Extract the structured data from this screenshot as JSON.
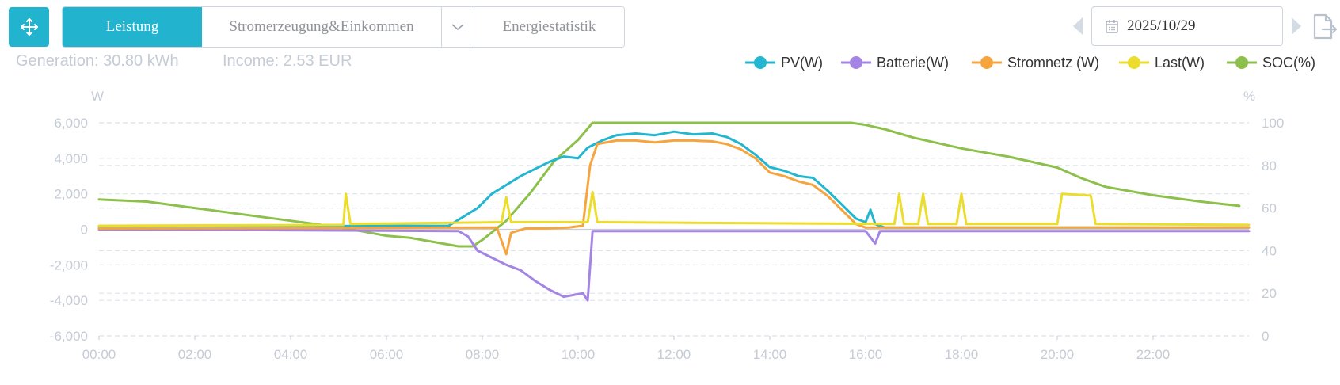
{
  "toolbar": {
    "tabs": [
      {
        "label": "Leistung",
        "active": true
      },
      {
        "label": "Stromerzeugung&Einkommen",
        "active": false
      },
      {
        "label": "Energiestatistik",
        "active": false
      }
    ],
    "date": "2025/10/29"
  },
  "summary": {
    "generation": "Generation: 30.80 kWh",
    "income": "Income: 2.53 EUR"
  },
  "colors": {
    "accent": "#22b3cf",
    "pv": "#22b6d0",
    "batterie": "#a585e3",
    "stromnetz": "#f6a53e",
    "last": "#ecdd2c",
    "soc": "#8cc04a"
  },
  "chart_data": {
    "type": "line",
    "legend_position": "top-right",
    "grid": true,
    "ylabel_left": "W",
    "ylabel_right": "%",
    "ylim_left": [
      -6000,
      6000
    ],
    "ylim_right": [
      0,
      100
    ],
    "yticks_left": [
      "6,000",
      "4,000",
      "2,000",
      "0",
      "-2,000",
      "-4,000",
      "-6,000"
    ],
    "yticks_right": [
      "100",
      "80",
      "60",
      "40",
      "20",
      "0"
    ],
    "xlim": [
      0,
      24
    ],
    "xticks": [
      "00:00",
      "02:00",
      "04:00",
      "06:00",
      "08:00",
      "10:00",
      "12:00",
      "14:00",
      "16:00",
      "18:00",
      "20:00",
      "22:00"
    ],
    "series": [
      {
        "name": "PV(W)",
        "axis": "left",
        "color": "#22b6d0",
        "x": [
          0,
          7.3,
          7.6,
          7.9,
          8.2,
          8.5,
          8.8,
          9.1,
          9.4,
          9.7,
          10.0,
          10.2,
          10.5,
          10.8,
          11.2,
          11.6,
          12.0,
          12.4,
          12.8,
          13.1,
          13.4,
          13.7,
          14.0,
          14.3,
          14.6,
          14.9,
          15.2,
          15.5,
          15.8,
          16.0,
          16.1,
          16.2,
          16.4,
          24
        ],
        "y": [
          150,
          200,
          700,
          1200,
          2000,
          2500,
          3000,
          3400,
          3800,
          4100,
          4000,
          4600,
          5000,
          5300,
          5400,
          5300,
          5500,
          5350,
          5400,
          5200,
          4800,
          4200,
          3500,
          3300,
          3000,
          2900,
          2200,
          1400,
          600,
          400,
          1100,
          300,
          100,
          100
        ]
      },
      {
        "name": "Batterie(W)",
        "axis": "left",
        "color": "#a585e3",
        "x": [
          0,
          7.5,
          7.7,
          7.9,
          8.2,
          8.5,
          8.8,
          9.1,
          9.4,
          9.7,
          9.9,
          10.1,
          10.2,
          10.3,
          16.0,
          16.2,
          16.3,
          24
        ],
        "y": [
          0,
          -100,
          -400,
          -1200,
          -1600,
          -2000,
          -2300,
          -2900,
          -3400,
          -3800,
          -3700,
          -3600,
          -4000,
          -100,
          -100,
          -800,
          -100,
          -100
        ]
      },
      {
        "name": "Stromnetz (W)",
        "axis": "left",
        "color": "#f6a53e",
        "x": [
          0,
          8.3,
          8.5,
          8.6,
          8.9,
          9.3,
          9.8,
          10.1,
          10.25,
          10.4,
          10.8,
          11.2,
          11.6,
          12.0,
          12.4,
          12.8,
          13.1,
          13.4,
          13.7,
          14.0,
          14.3,
          14.6,
          14.9,
          15.2,
          15.5,
          15.8,
          16.0,
          24
        ],
        "y": [
          50,
          100,
          -1400,
          -200,
          50,
          50,
          100,
          200,
          3600,
          4800,
          5000,
          5000,
          4900,
          5000,
          5000,
          4950,
          4800,
          4500,
          4000,
          3200,
          3000,
          2700,
          2500,
          1900,
          1100,
          300,
          100,
          100
        ]
      },
      {
        "name": "Last(W)",
        "axis": "left",
        "color": "#ecdd2c",
        "x": [
          0,
          5.1,
          5.15,
          5.25,
          8.4,
          8.5,
          8.6,
          10.2,
          10.3,
          10.4,
          16.6,
          16.7,
          16.8,
          17.1,
          17.2,
          17.3,
          17.9,
          18.0,
          18.1,
          20.0,
          20.1,
          20.7,
          20.8,
          24
        ],
        "y": [
          200,
          250,
          2000,
          300,
          400,
          1800,
          400,
          400,
          2100,
          400,
          300,
          2000,
          300,
          300,
          2000,
          300,
          300,
          2000,
          300,
          300,
          2000,
          1900,
          300,
          250
        ]
      },
      {
        "name": "SOC(%)",
        "axis": "right",
        "color": "#8cc04a",
        "x": [
          0,
          1.0,
          2.0,
          3.0,
          4.0,
          5.0,
          5.5,
          6.0,
          6.5,
          7.0,
          7.5,
          7.8,
          8.0,
          8.5,
          9.0,
          9.5,
          9.8,
          10.0,
          10.3,
          15.7,
          16.0,
          16.4,
          17.0,
          18.0,
          19.0,
          20.0,
          20.5,
          21.0,
          22.0,
          23.0,
          23.8
        ],
        "y": [
          64,
          63,
          60,
          57,
          54,
          51,
          49,
          47,
          46,
          44,
          42,
          42,
          45,
          54,
          67,
          82,
          88,
          92,
          100,
          100,
          99,
          97,
          93,
          88,
          84,
          79,
          74,
          70,
          66,
          63,
          61
        ]
      }
    ]
  }
}
